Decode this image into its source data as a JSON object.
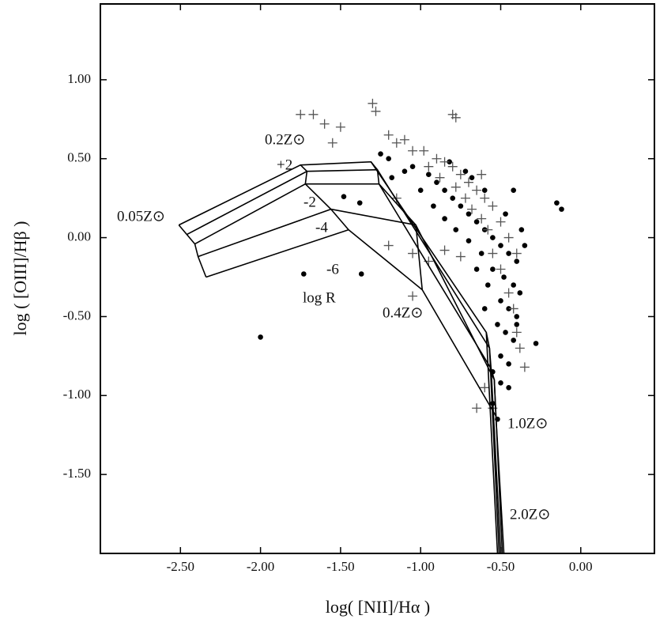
{
  "chart_data": {
    "type": "scatter",
    "xlabel": "log( [NII]/Hα )",
    "ylabel": "log ( [OIII]/Hβ )",
    "xlim": [
      -3.0,
      0.46
    ],
    "ylim": [
      -2.0,
      1.48
    ],
    "xticks": [
      {
        "value": -2.5,
        "label": "-2.50"
      },
      {
        "value": -2.0,
        "label": "-2.00"
      },
      {
        "value": -1.5,
        "label": "-1.50"
      },
      {
        "value": -1.0,
        "label": "-1.00"
      },
      {
        "value": -0.5,
        "label": "-0.50"
      },
      {
        "value": 0,
        "label": "0.00"
      }
    ],
    "yticks": [
      {
        "value": -1.5,
        "label": "-1.50"
      },
      {
        "value": -1.0,
        "label": "-1.00"
      },
      {
        "value": -0.5,
        "label": "-0.50"
      },
      {
        "value": 0,
        "label": "0.00"
      },
      {
        "value": 0.5,
        "label": "0.50"
      },
      {
        "value": 1.0,
        "label": "1.00"
      }
    ],
    "series": [
      {
        "marker": "dot",
        "color": "#000000",
        "x": [
          -2.0,
          -1.73,
          -1.37,
          -0.15,
          -0.12,
          -0.42,
          -0.37,
          -0.28,
          -1.48,
          -1.38,
          -1.25,
          -1.2,
          -1.1,
          -1.05,
          -0.95,
          -0.9,
          -0.85,
          -0.8,
          -0.75,
          -0.7,
          -0.65,
          -0.6,
          -0.55,
          -0.5,
          -0.45,
          -0.4,
          -0.55,
          -0.48,
          -0.42,
          -0.38,
          -0.5,
          -0.45,
          -0.4,
          -0.52,
          -0.47,
          -0.42,
          -0.5,
          -0.45,
          -0.55,
          -0.5,
          -0.45,
          -0.55,
          -0.52,
          -1.0,
          -0.92,
          -0.85,
          -0.78,
          -0.7,
          -0.62,
          -0.58,
          -0.6,
          -0.35,
          -0.6,
          -0.68,
          -1.18,
          -0.82,
          -0.72,
          -0.47,
          -0.4,
          -0.65
        ],
        "values": [
          -0.63,
          -0.23,
          -0.23,
          0.22,
          0.18,
          0.3,
          0.05,
          -0.67,
          0.26,
          0.22,
          0.53,
          0.5,
          0.42,
          0.45,
          0.4,
          0.35,
          0.3,
          0.25,
          0.2,
          0.15,
          0.1,
          0.05,
          0.0,
          -0.05,
          -0.1,
          -0.15,
          -0.2,
          -0.25,
          -0.3,
          -0.35,
          -0.4,
          -0.45,
          -0.5,
          -0.55,
          -0.6,
          -0.65,
          -0.75,
          -0.8,
          -0.85,
          -0.92,
          -0.95,
          -1.05,
          -1.15,
          0.3,
          0.2,
          0.12,
          0.05,
          -0.02,
          -0.1,
          -0.3,
          -0.45,
          -0.05,
          0.3,
          0.38,
          0.38,
          0.48,
          0.42,
          0.15,
          -0.55,
          -0.2
        ]
      },
      {
        "marker": "plus",
        "color": "#555555",
        "x": [
          -1.75,
          -1.67,
          -1.3,
          -1.28,
          -0.8,
          -0.78,
          -1.6,
          -1.55,
          -1.5,
          -1.2,
          -1.15,
          -1.1,
          -1.05,
          -0.98,
          -0.9,
          -0.85,
          -0.8,
          -0.75,
          -0.7,
          -0.65,
          -0.6,
          -0.55,
          -0.5,
          -0.45,
          -0.4,
          -1.2,
          -1.05,
          -0.95,
          -1.15,
          -0.95,
          -0.88,
          -0.78,
          -0.72,
          -0.68,
          -0.62,
          -0.58,
          -0.55,
          -0.5,
          -0.45,
          -0.42,
          -0.4,
          -0.38,
          -0.35,
          -0.55,
          -0.65,
          -0.6,
          -1.05,
          -0.85,
          -0.75,
          -0.62
        ],
        "values": [
          0.78,
          0.78,
          0.85,
          0.8,
          0.78,
          0.76,
          0.72,
          0.6,
          0.7,
          0.65,
          0.6,
          0.62,
          0.55,
          0.55,
          0.5,
          0.48,
          0.45,
          0.4,
          0.35,
          0.3,
          0.25,
          0.2,
          0.1,
          0.0,
          -0.1,
          -0.05,
          -0.1,
          -0.15,
          0.25,
          0.45,
          0.38,
          0.32,
          0.25,
          0.18,
          0.12,
          0.05,
          -0.1,
          -0.2,
          -0.35,
          -0.45,
          -0.6,
          -0.7,
          -0.82,
          -1.08,
          -1.08,
          -0.95,
          -0.37,
          -0.08,
          -0.12,
          0.4
        ]
      },
      {
        "marker": "line",
        "color": "#000000",
        "x": [
          -2.51,
          -1.75,
          -1.31,
          -0.59,
          -0.52
        ],
        "values": [
          0.08,
          0.46,
          0.48,
          -0.6,
          -2.0
        ]
      },
      {
        "marker": "line",
        "color": "#000000",
        "x": [
          -2.46,
          -1.71,
          -1.27,
          -0.57,
          -0.51
        ],
        "values": [
          0.02,
          0.42,
          0.43,
          -0.7,
          -2.0
        ]
      },
      {
        "marker": "line",
        "color": "#000000",
        "x": [
          -2.41,
          -1.72,
          -1.26,
          -0.56,
          -0.5
        ],
        "values": [
          -0.04,
          0.34,
          0.34,
          -0.83,
          -2.0
        ]
      },
      {
        "marker": "line",
        "color": "#000000",
        "x": [
          -2.39,
          -1.56,
          -1.03,
          -0.54,
          -0.49
        ],
        "values": [
          -0.12,
          0.18,
          0.08,
          -0.9,
          -2.0
        ]
      },
      {
        "marker": "line",
        "color": "#000000",
        "x": [
          -2.34,
          -1.45,
          -0.99,
          -0.53,
          -0.48
        ],
        "values": [
          -0.25,
          0.05,
          -0.33,
          -1.13,
          -2.0
        ]
      }
    ],
    "annotations": [
      "0.2Z⊙",
      "+2",
      "0.05Z⊙",
      "-2",
      "-4",
      "-6",
      "log R",
      "0.4Z⊙",
      "1.0Z⊙",
      "2.0Z⊙"
    ]
  }
}
